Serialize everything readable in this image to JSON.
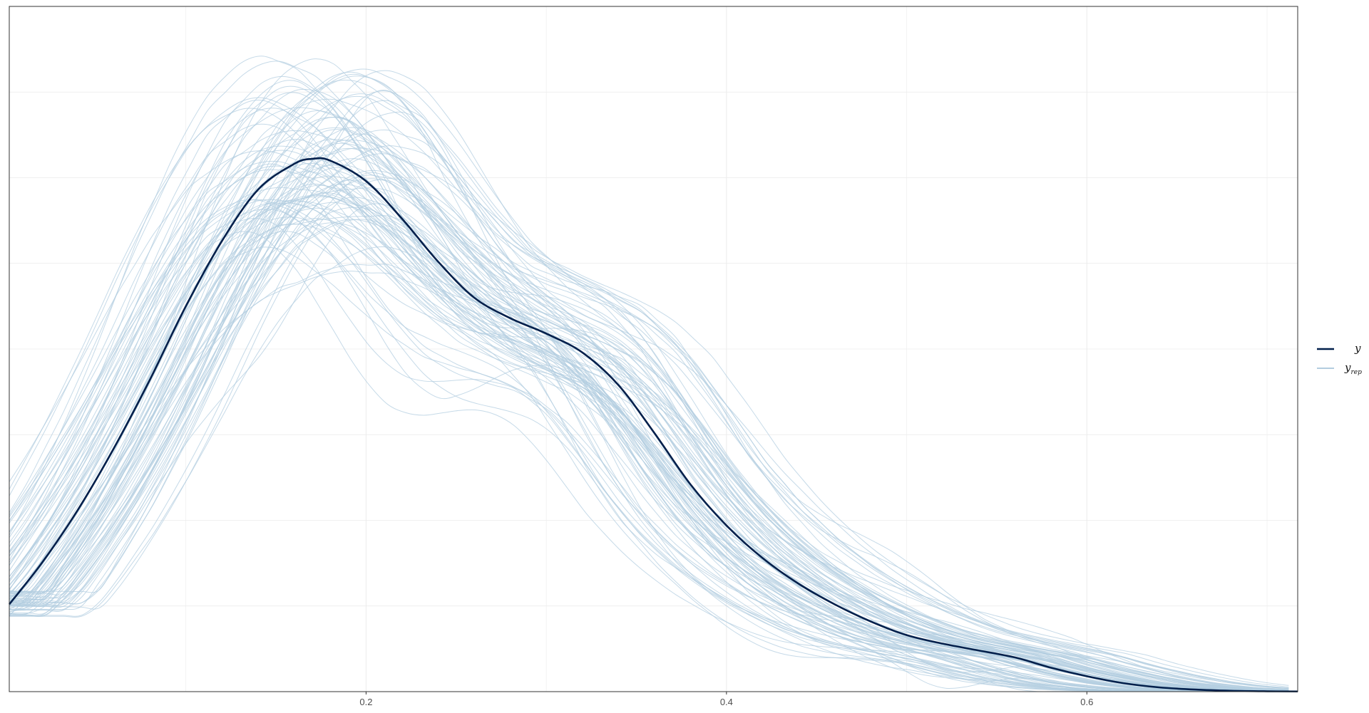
{
  "chart_data": {
    "type": "line",
    "title": "",
    "xlabel": "",
    "ylabel": "",
    "xlim": [
      0.002,
      0.717
    ],
    "ylim": [
      0,
      4.0
    ],
    "x_ticks": [
      {
        "value": 0.2,
        "label": "0.2"
      },
      {
        "value": 0.4,
        "label": "0.4"
      },
      {
        "value": 0.6,
        "label": "0.6"
      }
    ],
    "y_ticks_shown": false,
    "grid": true,
    "legend_position": "right",
    "legend": [
      {
        "key": "y",
        "label": "y",
        "sub": "",
        "color": "#011f4b"
      },
      {
        "key": "yrep",
        "label": "y",
        "sub": "rep",
        "color": "#b3cde0"
      }
    ],
    "series": [
      {
        "key": "y",
        "color": "#011f4b",
        "x": [
          0.002,
          0.02,
          0.04,
          0.06,
          0.08,
          0.1,
          0.12,
          0.14,
          0.16,
          0.17,
          0.18,
          0.2,
          0.22,
          0.24,
          0.26,
          0.28,
          0.3,
          0.32,
          0.34,
          0.36,
          0.38,
          0.4,
          0.42,
          0.44,
          0.46,
          0.48,
          0.5,
          0.52,
          0.54,
          0.56,
          0.58,
          0.6,
          0.62,
          0.64,
          0.66,
          0.68,
          0.7,
          0.717
        ],
        "y": [
          0.51,
          0.75,
          1.06,
          1.42,
          1.82,
          2.25,
          2.63,
          2.93,
          3.08,
          3.11,
          3.1,
          2.98,
          2.76,
          2.51,
          2.3,
          2.18,
          2.09,
          1.98,
          1.79,
          1.51,
          1.21,
          0.97,
          0.78,
          0.63,
          0.51,
          0.41,
          0.33,
          0.28,
          0.24,
          0.2,
          0.14,
          0.09,
          0.05,
          0.025,
          0.012,
          0.005,
          0.002,
          0.001
        ]
      }
    ],
    "replicates": {
      "key": "yrep",
      "color": "#b3cde0",
      "count": 100,
      "peak_x_range": [
        0.13,
        0.24
      ],
      "peak_y_range": [
        2.5,
        3.9
      ]
    }
  }
}
